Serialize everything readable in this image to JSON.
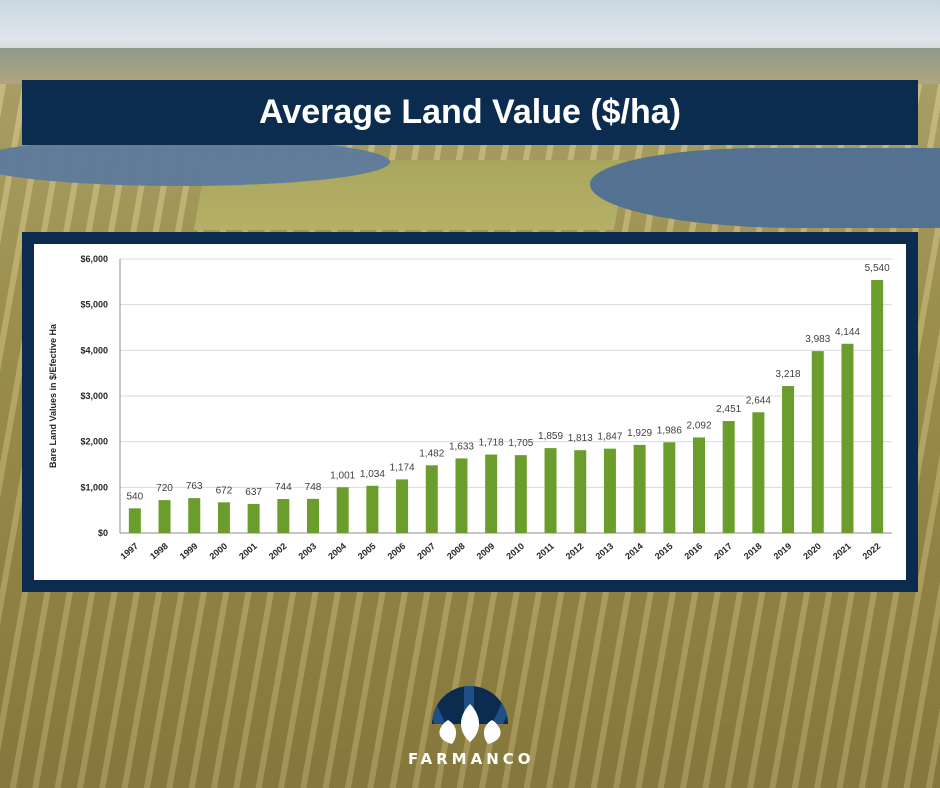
{
  "header": {
    "title": "Average Land Value ($/ha)"
  },
  "brand": {
    "name": "FARMANCO",
    "logo_icon": "farmanco-leaf-logo-icon"
  },
  "colors": {
    "bar": "#6a9d2b",
    "frame": "#0c2c4f",
    "grid": "#d9d9d9",
    "text": "#404040"
  },
  "chart_data": {
    "type": "bar",
    "title": "",
    "xlabel": "",
    "ylabel": "Bare Land Values in $/Efective Ha",
    "ylim": [
      0,
      6000
    ],
    "yticks": [
      "$0",
      "$1,000",
      "$2,000",
      "$3,000",
      "$4,000",
      "$5,000",
      "$6,000"
    ],
    "grid": true,
    "categories": [
      "1997",
      "1998",
      "1999",
      "2000",
      "2001",
      "2002",
      "2003",
      "2004",
      "2005",
      "2006",
      "2007",
      "2008",
      "2009",
      "2010",
      "2011",
      "2012",
      "2013",
      "2014",
      "2015",
      "2016",
      "2017",
      "2018",
      "2019",
      "2020",
      "2021",
      "2022"
    ],
    "values": [
      540,
      720,
      763,
      672,
      637,
      744,
      748,
      1001,
      1034,
      1174,
      1482,
      1633,
      1718,
      1705,
      1859,
      1813,
      1847,
      1929,
      1986,
      2092,
      2451,
      2644,
      3218,
      3983,
      4144,
      5540
    ],
    "value_labels": [
      "540",
      "720",
      "763",
      "672",
      "637",
      "744",
      "748",
      "1,001",
      "1,034",
      "1,174",
      "1,482",
      "1,633",
      "1,718",
      "1,705",
      "1,859",
      "1,813",
      "1,847",
      "1,929",
      "1,986",
      "2,092",
      "2,451",
      "2,644",
      "3,218",
      "3,983",
      "4,144",
      "5,540"
    ]
  }
}
